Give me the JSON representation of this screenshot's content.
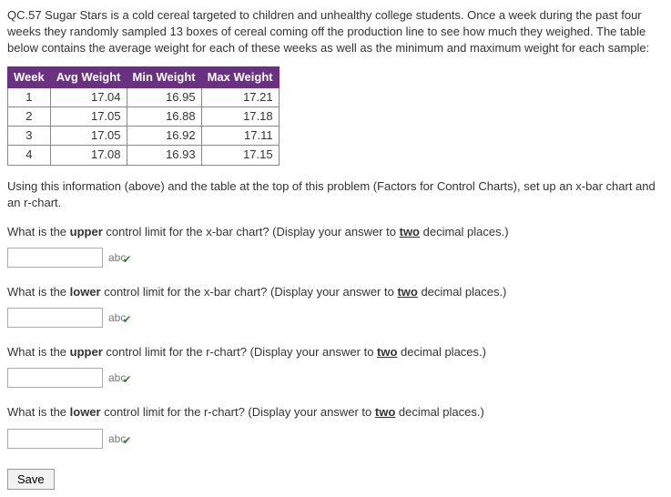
{
  "intro": "QC.57 Sugar Stars is a cold cereal targeted to children and unhealthy college students. Once a week during the past four weeks they randomly sampled 13 boxes of cereal coming off the production line to see how much they weighed. The table below contains the average weight for each of these weeks as well as the minimum and maximum weight for each sample:",
  "table": {
    "header_bg": "#6a3081",
    "header_color": "#ffffff",
    "columns": [
      "Week",
      "Avg Weight",
      "Min Weight",
      "Max Weight"
    ],
    "rows": [
      [
        "1",
        "17.04",
        "16.95",
        "17.21"
      ],
      [
        "2",
        "17.05",
        "16.88",
        "17.18"
      ],
      [
        "3",
        "17.05",
        "16.92",
        "17.11"
      ],
      [
        "4",
        "17.08",
        "16.93",
        "17.15"
      ]
    ]
  },
  "instruction": "Using this information (above) and the table at the top of this problem (Factors for Control Charts), set up an x-bar chart and an r-chart.",
  "questions": {
    "q1": {
      "pre": "What is the ",
      "bold": "upper",
      "post": " control limit for the x-bar chart? (Display your answer to ",
      "u": "two",
      "tail": " decimal places.)"
    },
    "q2": {
      "pre": "What is the ",
      "bold": "lower",
      "post": " control limit for the x-bar chart? (Display your answer to ",
      "u": "two",
      "tail": " decimal places.)"
    },
    "q3": {
      "pre": "What is the ",
      "bold": "upper",
      "post": " control limit for the r-chart? (Display your answer to ",
      "u": "two",
      "tail": " decimal places.)"
    },
    "q4": {
      "pre": "What is the ",
      "bold": "lower",
      "post": " control limit for the r-chart? (Display your answer to ",
      "u": "two",
      "tail": " decimal places.)"
    }
  },
  "badge_text": "abc",
  "badge_check": "✔",
  "save_label": "Save"
}
